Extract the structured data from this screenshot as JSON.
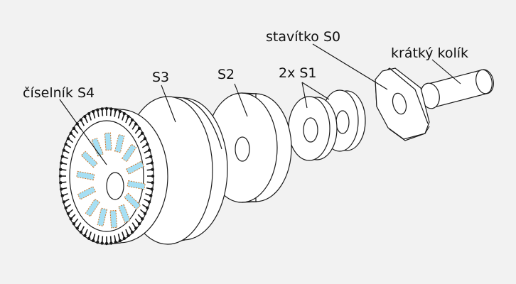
{
  "labels": {
    "s4": "číselník S4",
    "s3": "S3",
    "s2": "S2",
    "s1": "2x S1",
    "s0": "stavítko S0",
    "pin": "krátký kolík"
  },
  "colors": {
    "background": "#f2f2f2",
    "part_fill": "#ffffff",
    "outline": "#1a1a1a",
    "slot_fill": "#a6dff4",
    "slot_dash": "#d07a2f"
  }
}
